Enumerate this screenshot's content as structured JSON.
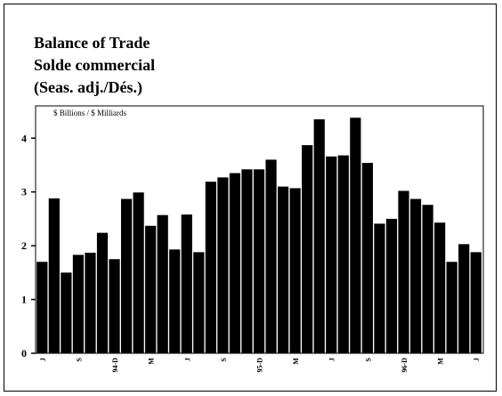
{
  "chart_data": {
    "type": "bar",
    "title": [
      "Balance of Trade",
      "Solde commercial",
      "(Seas. adj./Dés.)"
    ],
    "unit_label": "$ Billions / $ Milliards",
    "xlabel": "",
    "ylabel": "",
    "ylim": [
      0,
      4.6
    ],
    "yticks": [
      0,
      1,
      2,
      3,
      4
    ],
    "grid": false,
    "legend": "none",
    "bar_color": "#000000",
    "x_tick_labels": [
      {
        "index": 0,
        "label": "J"
      },
      {
        "index": 3,
        "label": "S"
      },
      {
        "index": 6,
        "label": "94-D"
      },
      {
        "index": 9,
        "label": "M"
      },
      {
        "index": 12,
        "label": "J"
      },
      {
        "index": 15,
        "label": "S"
      },
      {
        "index": 18,
        "label": "95-D"
      },
      {
        "index": 21,
        "label": "M"
      },
      {
        "index": 24,
        "label": "J"
      },
      {
        "index": 27,
        "label": "S"
      },
      {
        "index": 30,
        "label": "96-D"
      },
      {
        "index": 33,
        "label": "M"
      },
      {
        "index": 36,
        "label": "J"
      }
    ],
    "values": [
      1.7,
      2.88,
      1.5,
      1.83,
      1.87,
      2.24,
      1.75,
      2.87,
      2.99,
      2.37,
      2.57,
      1.93,
      2.58,
      1.88,
      3.19,
      3.27,
      3.35,
      3.42,
      3.42,
      3.6,
      3.1,
      3.07,
      3.87,
      4.35,
      3.66,
      3.68,
      4.38,
      3.54,
      2.41,
      2.5,
      3.02,
      2.87,
      2.76,
      2.43,
      1.7,
      2.03,
      1.88
    ]
  }
}
